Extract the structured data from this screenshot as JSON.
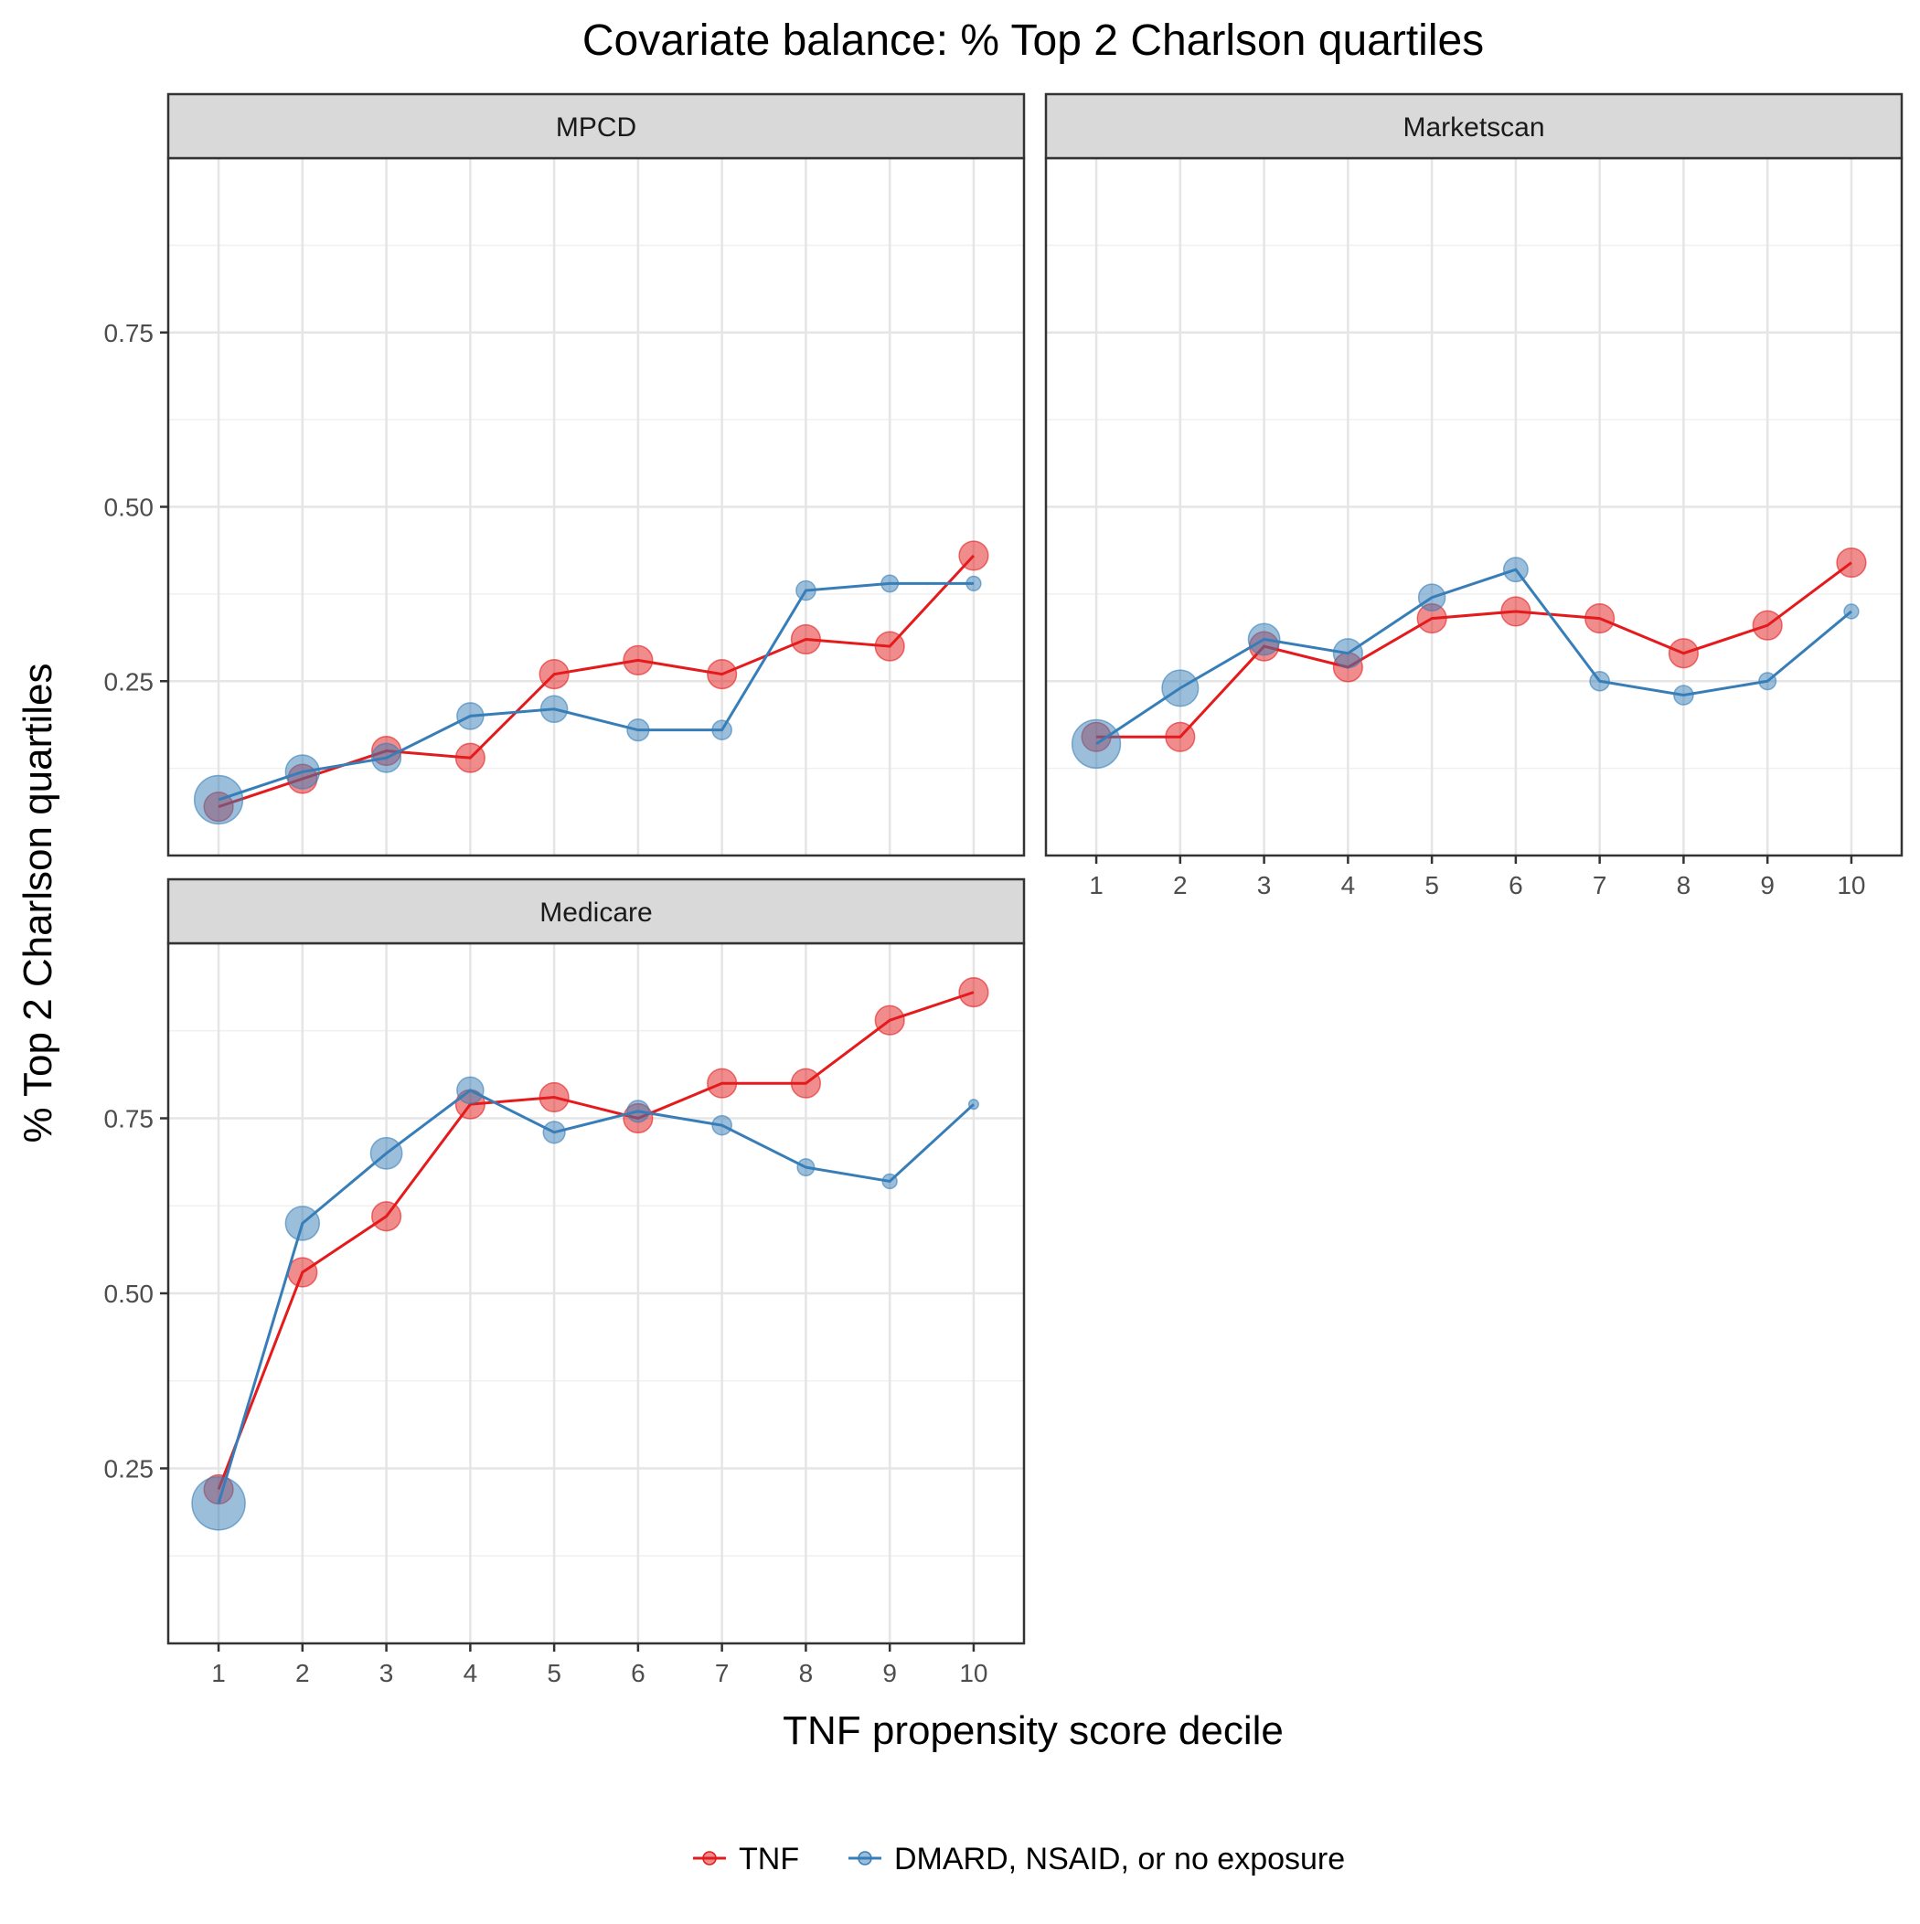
{
  "chart_data": {
    "type": "line",
    "title": "Covariate balance: % Top 2 Charlson quartiles",
    "xlabel": "TNF propensity score decile",
    "ylabel": "% Top 2 Charlson quartiles",
    "x": [
      1,
      2,
      3,
      4,
      5,
      6,
      7,
      8,
      9,
      10
    ],
    "x_tick_labels": [
      "1",
      "2",
      "3",
      "4",
      "5",
      "6",
      "7",
      "8",
      "9",
      "10"
    ],
    "legend": {
      "position": "bottom",
      "entries": [
        "TNF",
        "DMARD, NSAID, or no exposure"
      ]
    },
    "colors": {
      "TNF": "#e41a1c",
      "DMARD, NSAID, or no exposure": "#377eb8"
    },
    "grid": true,
    "facets": [
      {
        "label": "MPCD",
        "ylim": [
          0.0,
          1.0
        ],
        "y_ticks": [
          0.25,
          0.5,
          0.75
        ],
        "y_tick_labels": [
          "0.25",
          "0.50",
          "0.75"
        ],
        "series": [
          {
            "name": "TNF",
            "values": [
              0.07,
              0.11,
              0.15,
              0.14,
              0.26,
              0.28,
              0.26,
              0.31,
              0.3,
              0.43
            ],
            "sizes": [
              12,
              12,
              12,
              12,
              12,
              12,
              12,
              12,
              12,
              12
            ]
          },
          {
            "name": "DMARD, NSAID, or no exposure",
            "values": [
              0.08,
              0.12,
              0.14,
              0.2,
              0.21,
              0.18,
              0.18,
              0.38,
              0.39,
              0.39
            ],
            "sizes": [
              20,
              14,
              12,
              11,
              11,
              9,
              8,
              8,
              7,
              6
            ]
          }
        ]
      },
      {
        "label": "Marketscan",
        "ylim": [
          0.0,
          1.0
        ],
        "y_ticks": [
          0.25,
          0.5,
          0.75
        ],
        "y_tick_labels": [],
        "series": [
          {
            "name": "TNF",
            "values": [
              0.17,
              0.17,
              0.3,
              0.27,
              0.34,
              0.35,
              0.34,
              0.29,
              0.33,
              0.42
            ],
            "sizes": [
              12,
              12,
              12,
              12,
              12,
              12,
              12,
              12,
              12,
              12
            ]
          },
          {
            "name": "DMARD, NSAID, or no exposure",
            "values": [
              0.16,
              0.24,
              0.31,
              0.29,
              0.37,
              0.41,
              0.25,
              0.23,
              0.25,
              0.35
            ],
            "sizes": [
              20,
              15,
              13,
              12,
              11,
              10,
              8,
              8,
              7,
              6
            ]
          }
        ]
      },
      {
        "label": "Medicare",
        "ylim": [
          0.0,
          1.0
        ],
        "y_ticks": [
          0.25,
          0.5,
          0.75
        ],
        "y_tick_labels": [
          "0.25",
          "0.50",
          "0.75"
        ],
        "series": [
          {
            "name": "TNF",
            "values": [
              0.22,
              0.53,
              0.61,
              0.77,
              0.78,
              0.75,
              0.8,
              0.8,
              0.89,
              0.93
            ],
            "sizes": [
              12,
              12,
              12,
              12,
              12,
              12,
              12,
              12,
              12,
              12
            ]
          },
          {
            "name": "DMARD, NSAID, or no exposure",
            "values": [
              0.2,
              0.6,
              0.7,
              0.79,
              0.73,
              0.76,
              0.74,
              0.68,
              0.66,
              0.77
            ],
            "sizes": [
              22,
              14,
              13,
              11,
              9,
              9,
              8,
              7,
              6,
              4
            ]
          }
        ]
      }
    ]
  }
}
